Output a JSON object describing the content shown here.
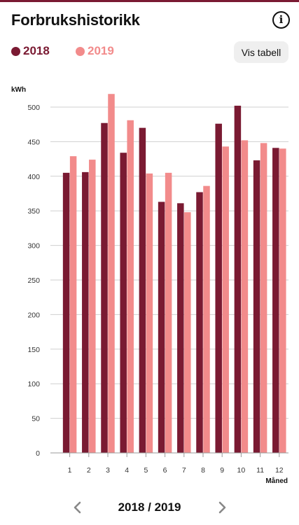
{
  "header": {
    "title": "Forbrukshistorikk",
    "info_icon": "info-circle-icon",
    "info_glyph": "i"
  },
  "legend": {
    "items": [
      {
        "label": "2018",
        "color": "#7a1a32"
      },
      {
        "label": "2019",
        "color": "#f28b8b"
      }
    ]
  },
  "table_button": {
    "label": "Vis tabell"
  },
  "chart_data": {
    "type": "bar",
    "categories": [
      "1",
      "2",
      "3",
      "4",
      "5",
      "6",
      "7",
      "8",
      "9",
      "10",
      "11",
      "12"
    ],
    "series": [
      {
        "name": "2018",
        "color": "#7a1a32",
        "values": [
          405,
          406,
          477,
          434,
          470,
          363,
          361,
          377,
          476,
          502,
          423,
          441
        ]
      },
      {
        "name": "2019",
        "color": "#f28b8b",
        "values": [
          429,
          424,
          519,
          481,
          404,
          405,
          348,
          386,
          443,
          452,
          448,
          440
        ]
      }
    ],
    "title": "",
    "xlabel": "Måned",
    "ylabel": "kWh",
    "ylim": [
      0,
      500
    ],
    "yticks": [
      0,
      50,
      100,
      150,
      200,
      250,
      300,
      350,
      400,
      450,
      500
    ],
    "grid": true,
    "legend": "top-left"
  },
  "pager": {
    "period": "2018 / 2019",
    "prev_icon": "chevron-left-icon",
    "next_icon": "chevron-right-icon"
  }
}
